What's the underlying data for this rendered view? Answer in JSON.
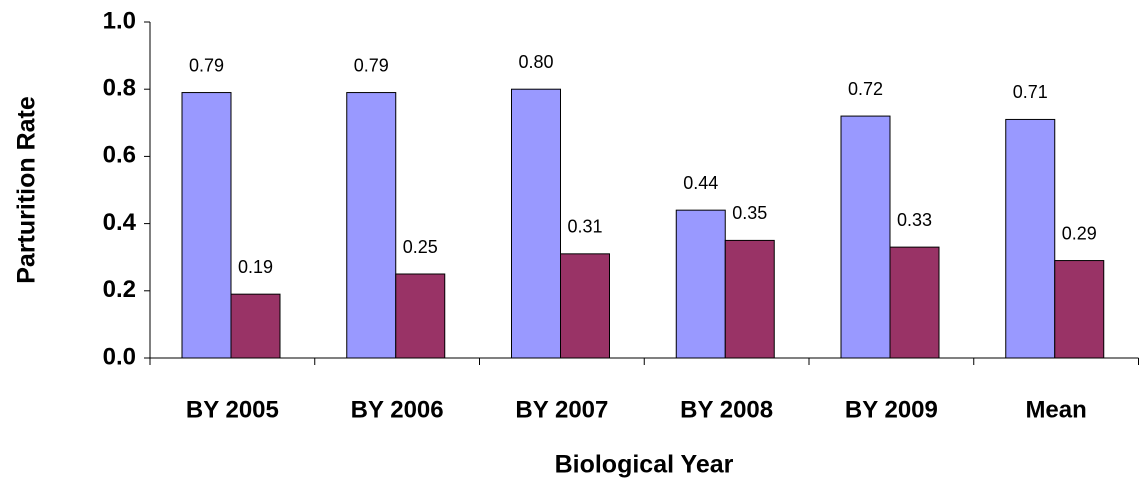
{
  "chart_data": {
    "type": "bar",
    "x_label": "Biological Year",
    "y_label": "Parturition Rate",
    "categories": [
      "BY 2005",
      "BY 2006",
      "BY 2007",
      "BY 2008",
      "BY 2009",
      "Mean"
    ],
    "series": [
      {
        "color": "#9999ff",
        "values": [
          0.79,
          0.79,
          0.8,
          0.44,
          0.72,
          0.71
        ],
        "value_labels": [
          "0.79",
          "0.79",
          "0.80",
          "0.44",
          "0.72",
          "0.71"
        ]
      },
      {
        "color": "#993366",
        "values": [
          0.19,
          0.25,
          0.31,
          0.35,
          0.33,
          0.29
        ],
        "value_labels": [
          "0.19",
          "0.25",
          "0.31",
          "0.35",
          "0.33",
          "0.29"
        ]
      }
    ],
    "ylim": [
      0,
      1
    ],
    "yticks": [
      {
        "value": 0,
        "label": "0.0"
      },
      0.2,
      0.4,
      0.6,
      0.8,
      {
        "value": 1,
        "label": "1.0"
      }
    ]
  }
}
